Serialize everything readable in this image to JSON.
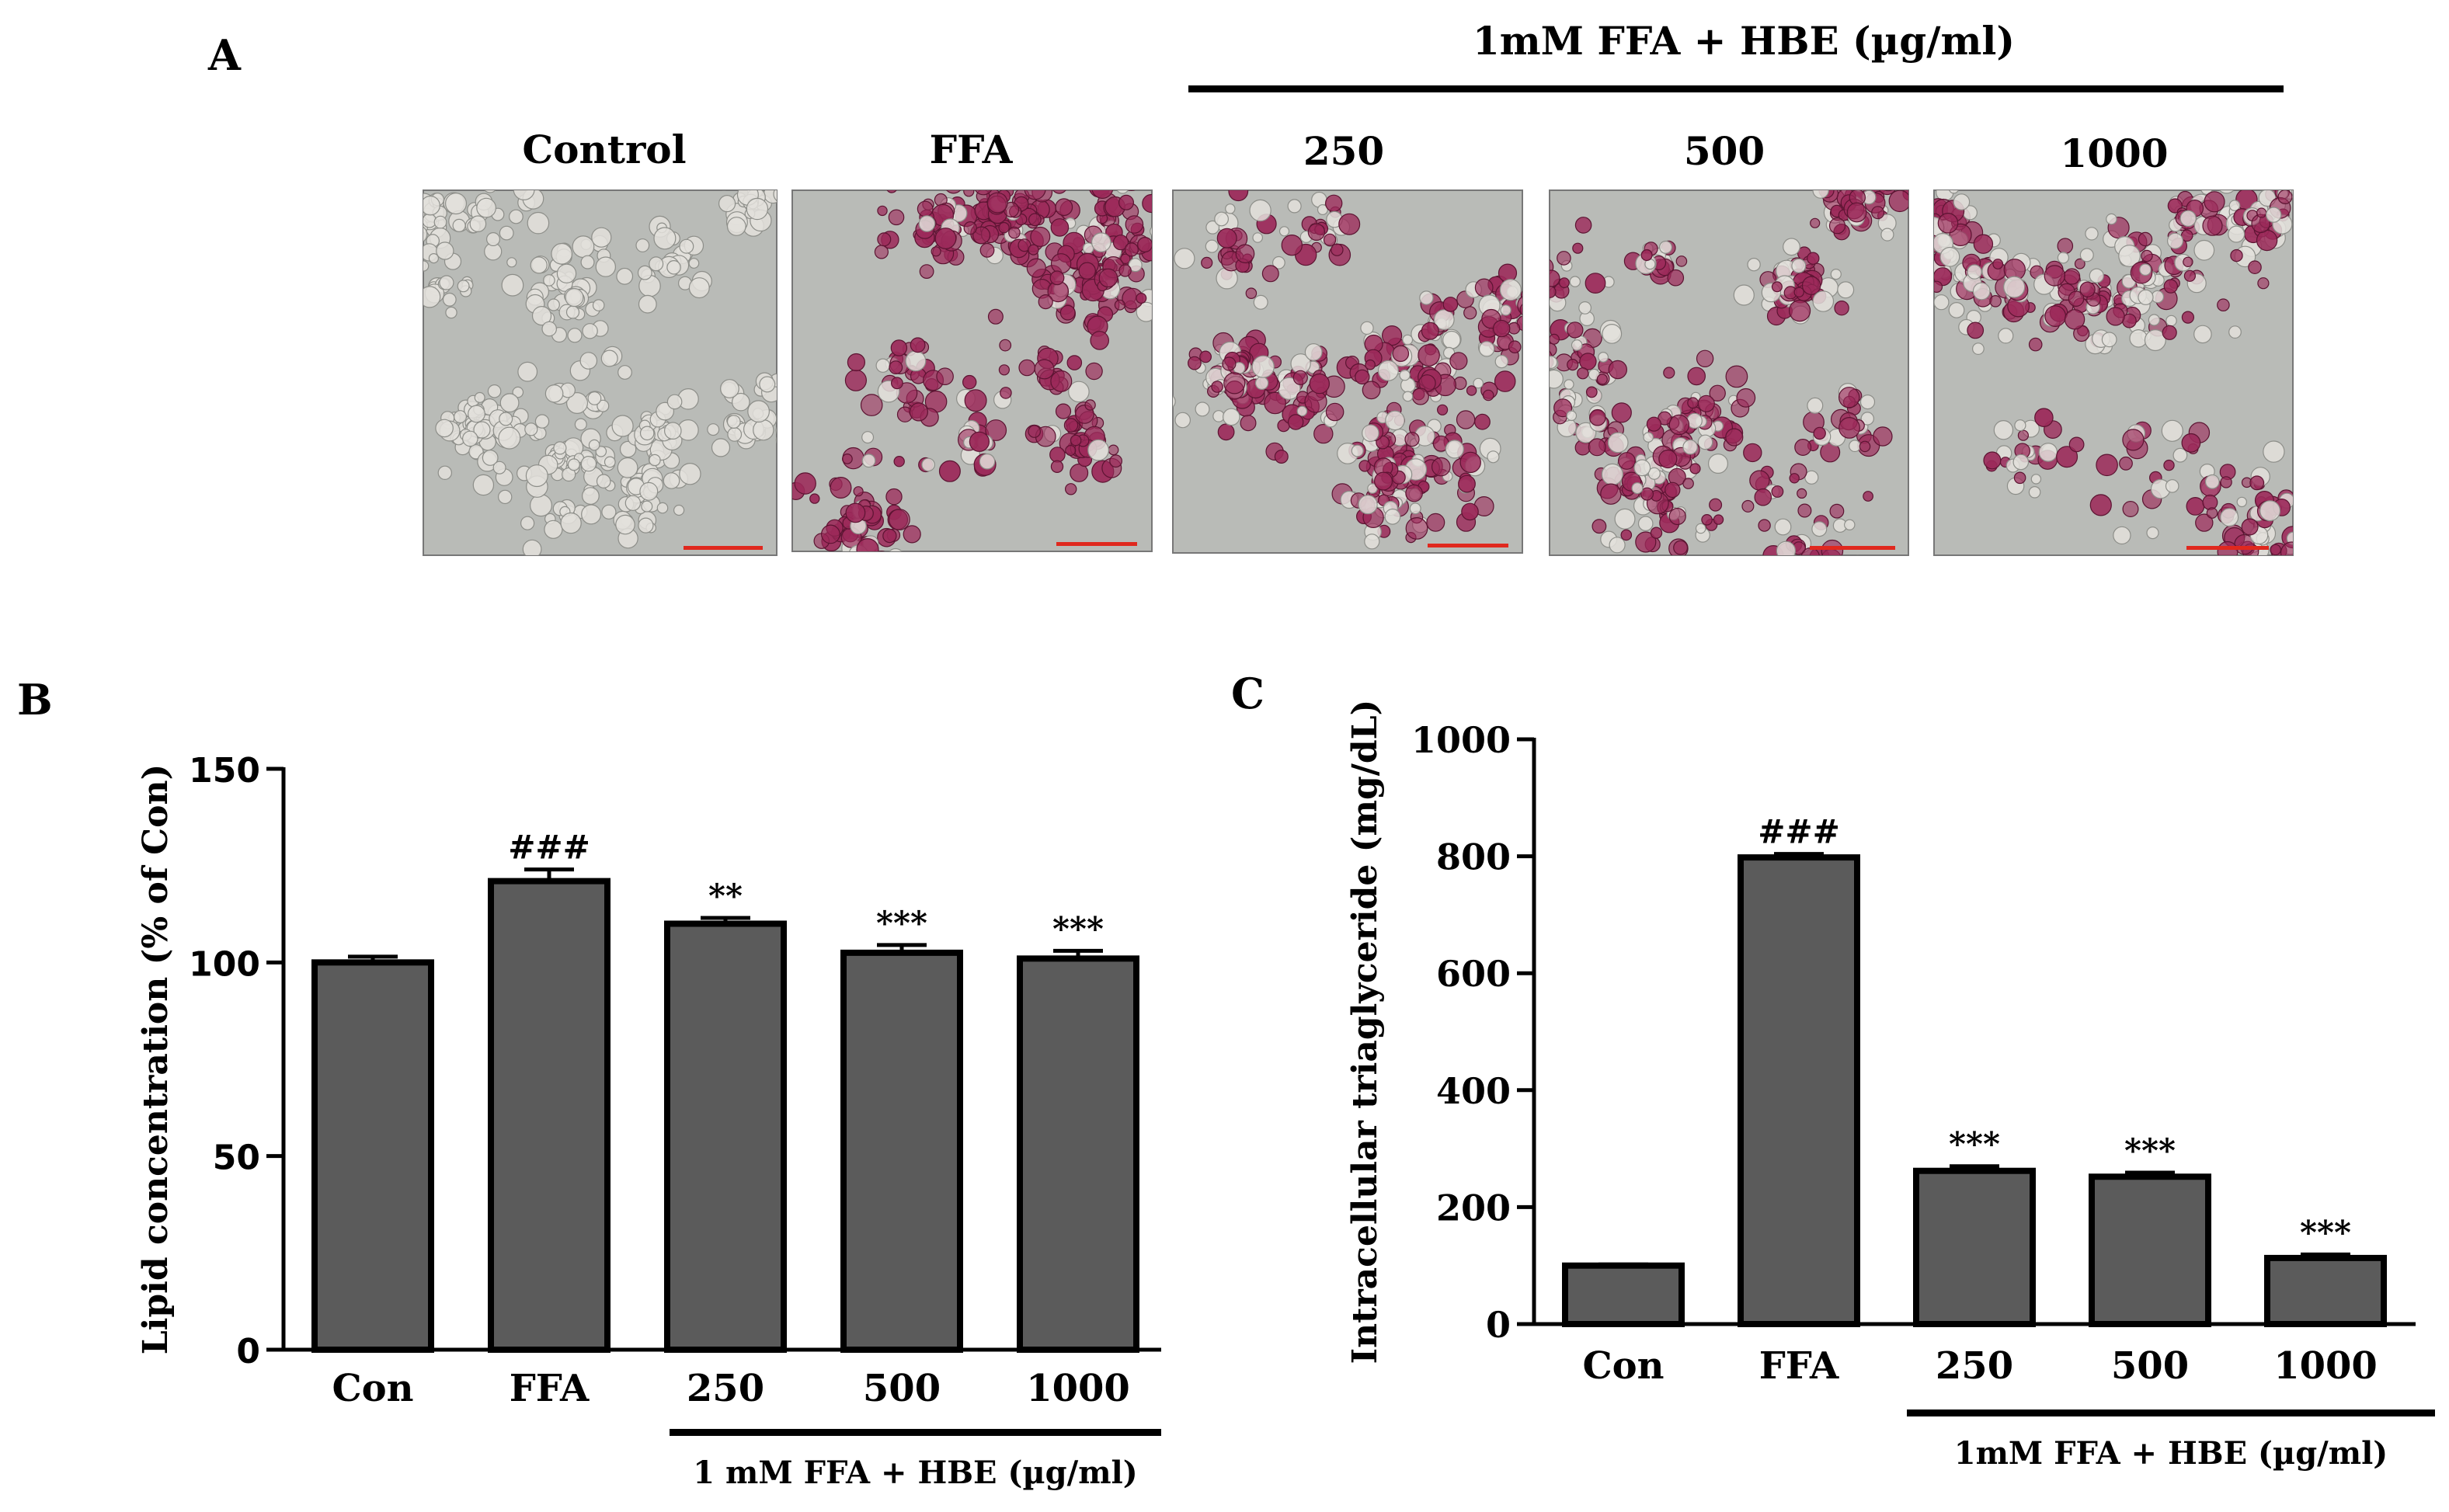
{
  "panel_a": {
    "letter": "A",
    "group_label": "1mM FFA + HBE (µg/ml)",
    "images": [
      {
        "label": "Control",
        "stain": "none"
      },
      {
        "label": "FFA",
        "stain": "heavy"
      },
      {
        "label": "250",
        "stain": "medium"
      },
      {
        "label": "500",
        "stain": "medium"
      },
      {
        "label": "1000",
        "stain": "light"
      }
    ],
    "colors": {
      "background": "#b9bbb7",
      "cell": "#e3e1dc",
      "lipid": "#9c2a5a",
      "scale_bar": "#e0281e"
    }
  },
  "chart_data": [
    {
      "panel": "B",
      "type": "bar",
      "categories": [
        "Con",
        "FFA",
        "250",
        "500",
        "1000"
      ],
      "values": [
        100,
        121,
        110,
        102.5,
        101
      ],
      "errors": [
        1.5,
        3,
        1.5,
        2,
        2
      ],
      "annotations": [
        "",
        "###",
        "**",
        "***",
        "***"
      ],
      "ylabel": "Lipid concentration (% of Con)",
      "ylim": [
        0,
        150
      ],
      "yticks": [
        0,
        50,
        100,
        150
      ],
      "group_label": "1 mM FFA + HBE (µg/ml)",
      "bar_color": "#5b5b5b"
    },
    {
      "panel": "C",
      "type": "bar",
      "categories": [
        "Con",
        "FFA",
        "250",
        "500",
        "1000"
      ],
      "values": [
        100,
        798,
        262,
        252,
        113
      ],
      "errors": [
        2,
        6,
        8,
        7,
        6
      ],
      "annotations": [
        "",
        "###",
        "***",
        "***",
        "***"
      ],
      "ylabel": "Intracellular triaglyceride (mg/dL)",
      "ylim": [
        0,
        1000
      ],
      "yticks": [
        0,
        200,
        400,
        600,
        800,
        1000
      ],
      "group_label": "1mM FFA + HBE (µg/ml)",
      "bar_color": "#5b5b5b"
    }
  ]
}
